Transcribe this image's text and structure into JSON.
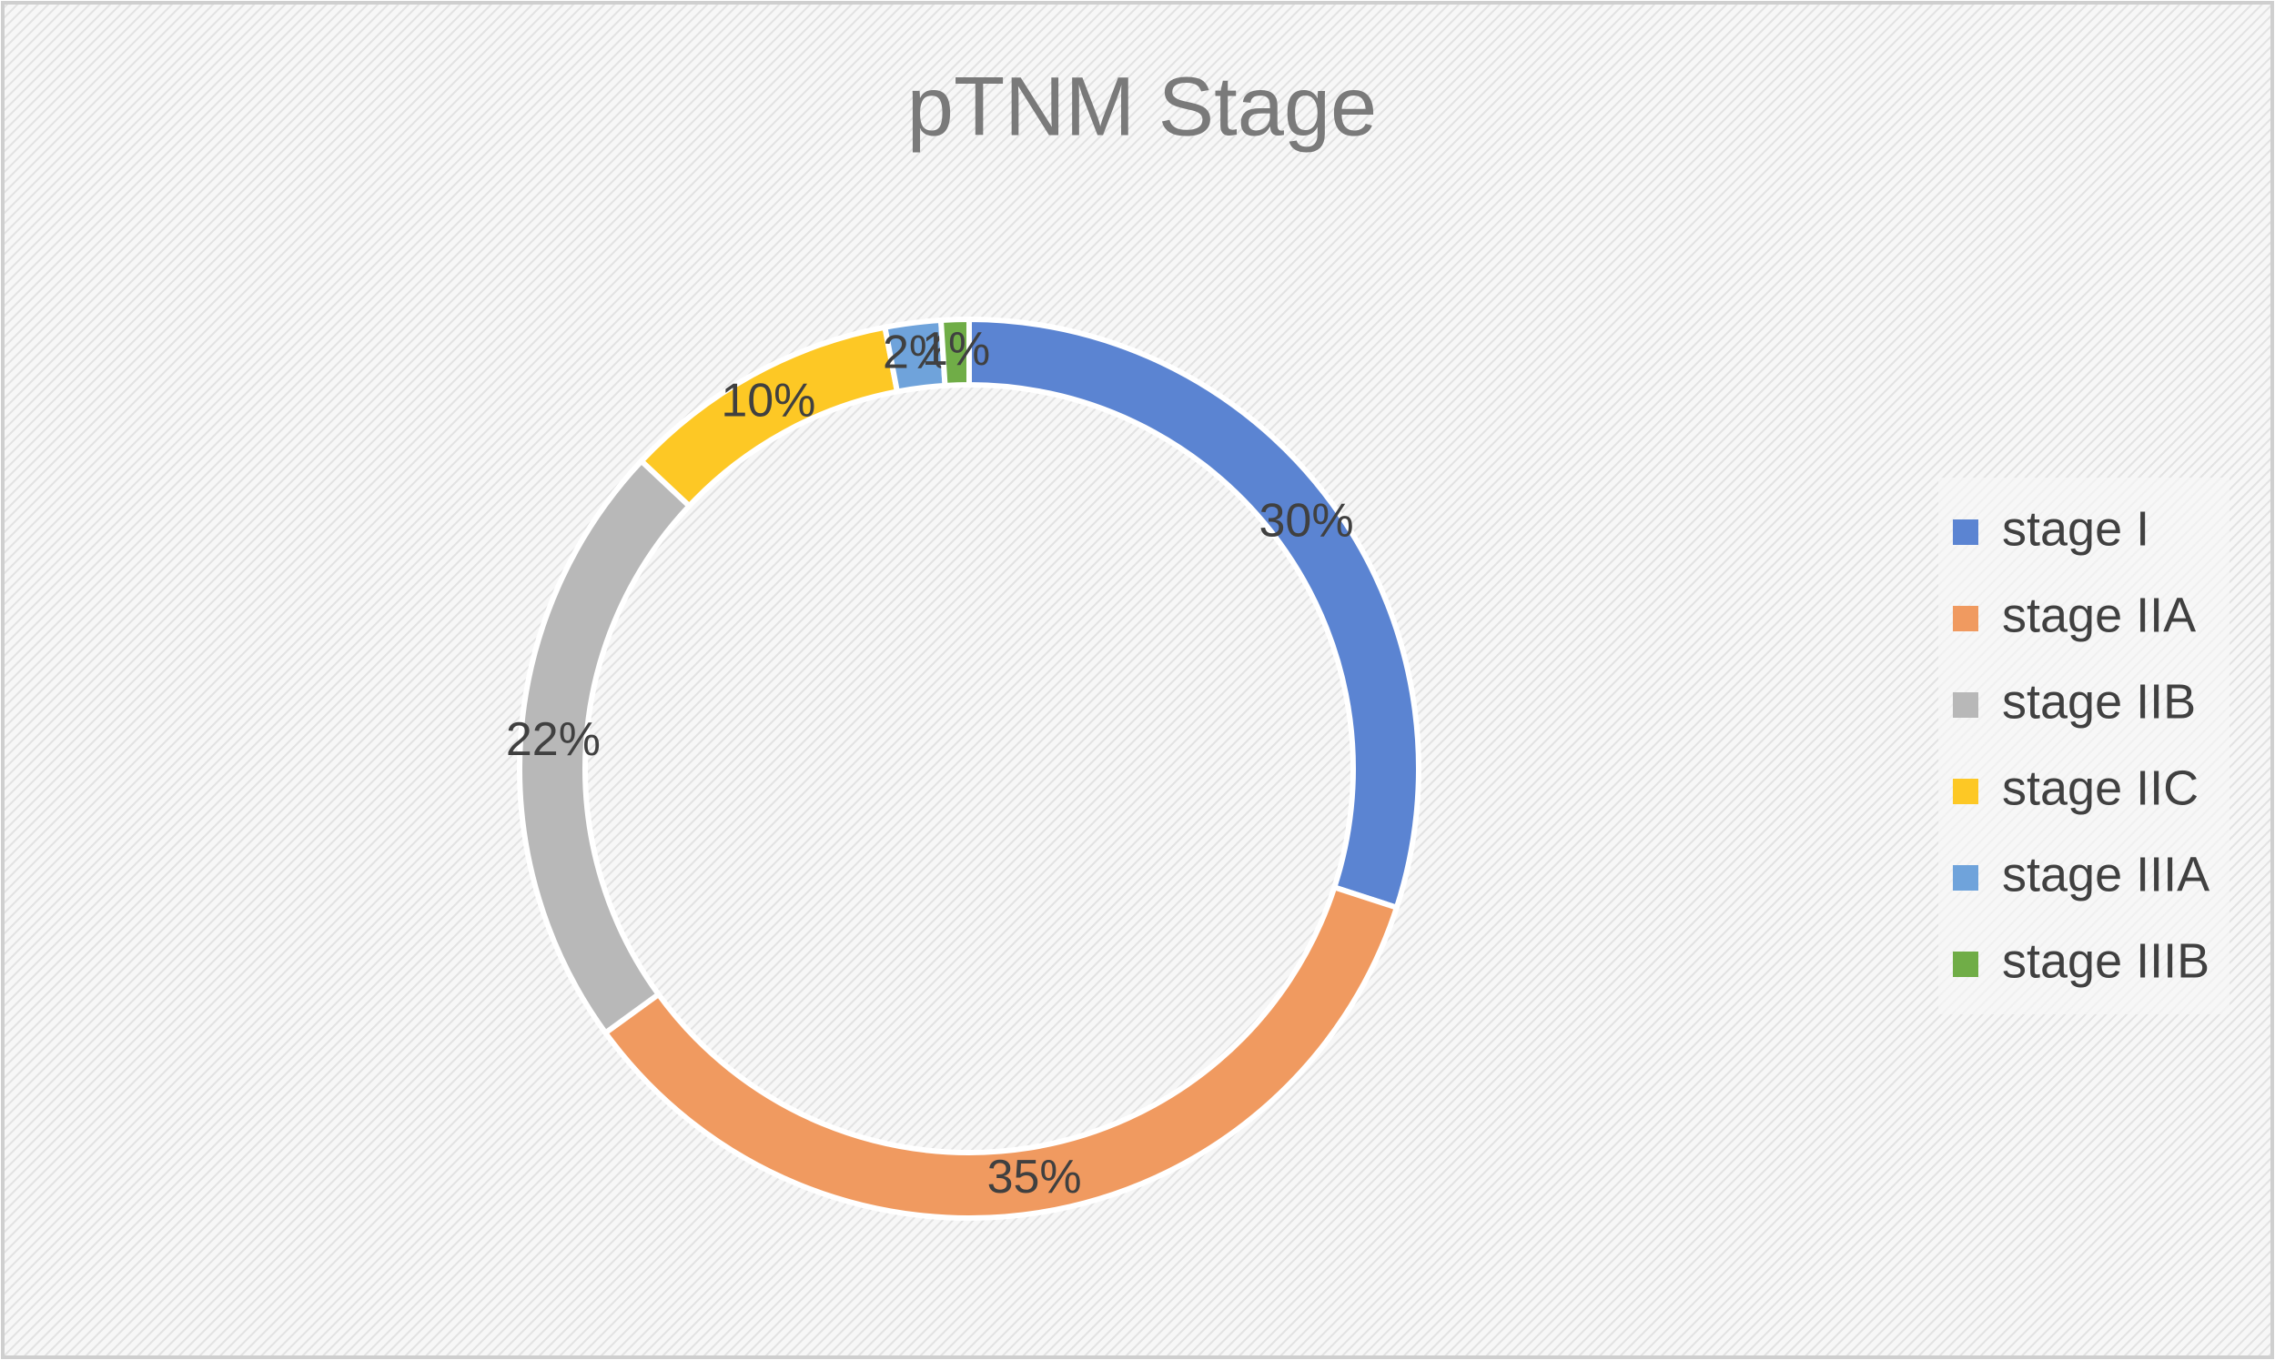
{
  "chart_data": {
    "type": "donut",
    "title": "pTNM Stage",
    "categories": [
      "stage I",
      "stage IIA",
      "stage IIB",
      "stage IIC",
      "stage IIIA",
      "stage IIIB"
    ],
    "values": [
      30,
      35,
      22,
      10,
      2,
      1
    ],
    "value_labels": [
      "30%",
      "35%",
      "22%",
      "10%",
      "2%",
      "1%"
    ],
    "colors": [
      "#5b84d2",
      "#f09a60",
      "#b8b8b8",
      "#fdc825",
      "#6fa3db",
      "#70ad47"
    ],
    "legend": "right"
  }
}
